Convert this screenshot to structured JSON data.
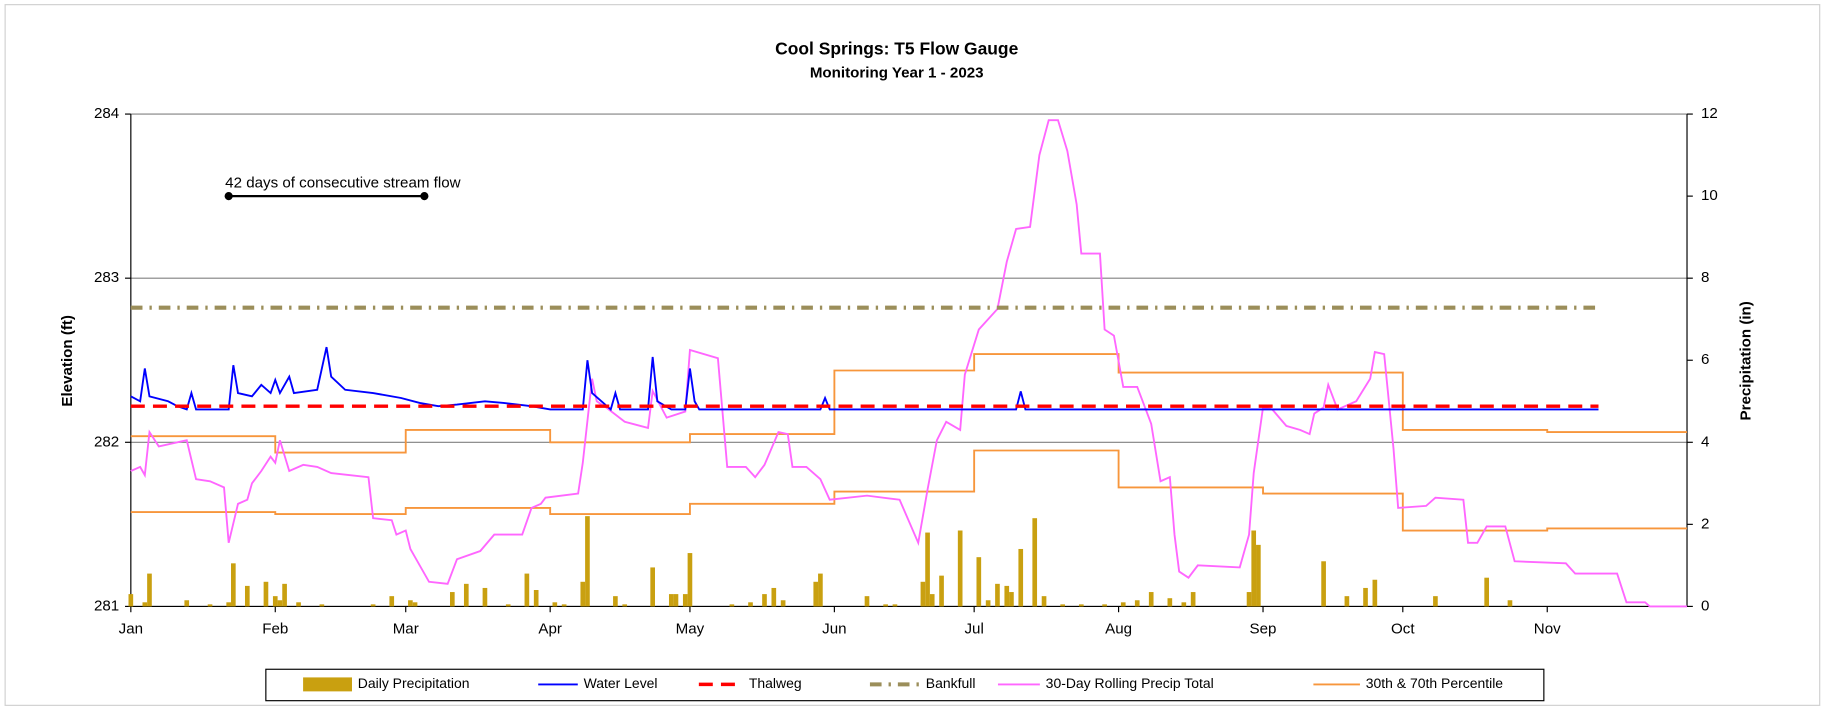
{
  "chart_data": {
    "type": "line",
    "title": "Cool Springs: T5 Flow Gauge",
    "subtitle": "Monitoring Year 1 - 2023",
    "y_label": "Elevation (ft)",
    "y2_label": "Precipitation (in)",
    "xlim": [
      0,
      334
    ],
    "xticks": [
      {
        "value": 0,
        "label": "Jan"
      },
      {
        "value": 31,
        "label": "Feb"
      },
      {
        "value": 59,
        "label": "Mar"
      },
      {
        "value": 90,
        "label": "Apr"
      },
      {
        "value": 120,
        "label": "May"
      },
      {
        "value": 151,
        "label": "Jun"
      },
      {
        "value": 181,
        "label": "Jul"
      },
      {
        "value": 212,
        "label": "Aug"
      },
      {
        "value": 243,
        "label": "Sep"
      },
      {
        "value": 273,
        "label": "Oct"
      },
      {
        "value": 304,
        "label": "Nov"
      }
    ],
    "ylim": [
      281,
      284
    ],
    "yticks": [
      281,
      282,
      283,
      284
    ],
    "y2lim": [
      0,
      12
    ],
    "y2ticks": [
      0,
      2,
      4,
      6,
      8,
      10,
      12
    ],
    "grid": true,
    "legend": "bottom",
    "annotation": {
      "text": "42 days of consecutive stream flow",
      "x": [
        21,
        63
      ],
      "y": 283.5
    },
    "series": [
      {
        "name": "Daily Precipitation",
        "style": "bar",
        "axis": "y2",
        "color": "#c9a010",
        "x": [
          0,
          3,
          4,
          12,
          17,
          21,
          22,
          25,
          29,
          31,
          32,
          33,
          36,
          41,
          52,
          56,
          60,
          61,
          69,
          72,
          76,
          81,
          85,
          87,
          91,
          93,
          97,
          98,
          104,
          106,
          112,
          116,
          117,
          119,
          120,
          129,
          133,
          136,
          138,
          140,
          147,
          148,
          158,
          162,
          164,
          170,
          171,
          172,
          174,
          178,
          182,
          184,
          186,
          188,
          189,
          191,
          194,
          196,
          200,
          204,
          209,
          213,
          216,
          219,
          223,
          226,
          228,
          240,
          241,
          242,
          256,
          261,
          265,
          267,
          280,
          291,
          296
        ],
        "values": [
          0.3,
          0.1,
          0.8,
          0.15,
          0.05,
          0.1,
          1.05,
          0.5,
          0.6,
          0.25,
          0.15,
          0.55,
          0.1,
          0.05,
          0.05,
          0.25,
          0.15,
          0.1,
          0.35,
          0.55,
          0.45,
          0.05,
          0.8,
          0.4,
          0.1,
          0.05,
          0.6,
          2.2,
          0.25,
          0.05,
          0.95,
          0.3,
          0.3,
          0.3,
          1.3,
          0.05,
          0.1,
          0.3,
          0.45,
          0.15,
          0.6,
          0.8,
          0.25,
          0.05,
          0.05,
          0.6,
          1.8,
          0.3,
          0.75,
          1.85,
          1.2,
          0.15,
          0.55,
          0.5,
          0.35,
          1.4,
          2.15,
          0.25,
          0.05,
          0.05,
          0.05,
          0.1,
          0.15,
          0.35,
          0.2,
          0.1,
          0.35,
          0.35,
          1.85,
          1.5,
          1.1,
          0.25,
          0.45,
          0.65,
          0.25,
          0.7,
          0.15
        ]
      },
      {
        "name": "Water Level",
        "style": "line",
        "color": "#0000ff",
        "x": [
          0,
          2,
          3,
          4,
          8,
          10,
          12,
          13,
          14,
          21,
          22,
          23,
          26,
          28,
          30,
          31,
          32,
          34,
          35,
          40,
          42,
          43,
          46,
          52,
          58,
          62,
          66,
          70,
          76,
          80,
          86,
          90,
          97,
          98,
          99,
          103,
          104,
          105,
          111,
          112,
          113,
          116,
          119,
          120,
          121,
          122,
          148,
          149,
          150,
          190,
          191,
          192,
          315
        ],
        "values": [
          282.28,
          282.25,
          282.45,
          282.28,
          282.25,
          282.22,
          282.2,
          282.3,
          282.2,
          282.2,
          282.47,
          282.3,
          282.28,
          282.35,
          282.3,
          282.38,
          282.3,
          282.4,
          282.3,
          282.32,
          282.58,
          282.4,
          282.32,
          282.3,
          282.27,
          282.24,
          282.22,
          282.23,
          282.25,
          282.24,
          282.22,
          282.2,
          282.2,
          282.5,
          282.3,
          282.2,
          282.3,
          282.2,
          282.2,
          282.52,
          282.25,
          282.2,
          282.2,
          282.45,
          282.25,
          282.2,
          282.2,
          282.27,
          282.2,
          282.2,
          282.31,
          282.2,
          282.2
        ]
      },
      {
        "name": "Thalweg",
        "style": "dash",
        "color": "#ff0000",
        "x": [
          0,
          315
        ],
        "values": [
          282.22,
          282.22
        ]
      },
      {
        "name": "Bankfull",
        "style": "dashdot",
        "color": "#9b8e5a",
        "x": [
          0,
          315
        ],
        "values": [
          282.82,
          282.82
        ]
      },
      {
        "name": "30-Day Rolling Precip Total",
        "style": "line",
        "axis": "y2",
        "color": "#ff66ff",
        "x": [
          0,
          2,
          3,
          4,
          6,
          12,
          14,
          17,
          20,
          21,
          23,
          25,
          26,
          28,
          30,
          31,
          32,
          34,
          37,
          40,
          43,
          51,
          52,
          56,
          57,
          59,
          60,
          61,
          64,
          68,
          70,
          75,
          78,
          84,
          86,
          88,
          89,
          96,
          97,
          99,
          100,
          102,
          106,
          111,
          112,
          115,
          119,
          120,
          126,
          128,
          132,
          134,
          136,
          139,
          141,
          142,
          145,
          148,
          150,
          158,
          165,
          169,
          171,
          173,
          175,
          178,
          179,
          182,
          186,
          188,
          190,
          193,
          195,
          197,
          199,
          201,
          203,
          204,
          208,
          209,
          211,
          213,
          216,
          219,
          221,
          223,
          224,
          225,
          227,
          229,
          238,
          240,
          241,
          243,
          245,
          248,
          251,
          253,
          254,
          256,
          257,
          259,
          263,
          266,
          267,
          269,
          271,
          272,
          278,
          280,
          286,
          287,
          289,
          291,
          295,
          297,
          308,
          310,
          319,
          321,
          325,
          326,
          334
        ],
        "values": [
          3.3,
          3.4,
          3.2,
          4.25,
          3.9,
          4.05,
          3.1,
          3.05,
          2.9,
          1.55,
          2.5,
          2.6,
          3.0,
          3.3,
          3.65,
          3.5,
          4.05,
          3.3,
          3.45,
          3.4,
          3.25,
          3.15,
          2.15,
          2.1,
          1.75,
          1.85,
          1.4,
          1.2,
          0.6,
          0.55,
          1.15,
          1.35,
          1.75,
          1.75,
          2.4,
          2.5,
          2.65,
          2.75,
          3.5,
          5.55,
          5.0,
          4.85,
          4.5,
          4.35,
          5.25,
          4.6,
          4.75,
          6.25,
          6.05,
          3.4,
          3.4,
          3.15,
          3.45,
          4.25,
          4.2,
          3.4,
          3.4,
          3.1,
          2.6,
          2.7,
          2.6,
          1.55,
          2.85,
          4.05,
          4.5,
          4.3,
          5.65,
          6.75,
          7.25,
          8.4,
          9.2,
          9.25,
          11.0,
          11.85,
          11.85,
          11.1,
          9.8,
          8.6,
          8.6,
          6.75,
          6.6,
          5.35,
          5.35,
          4.45,
          3.05,
          3.15,
          1.75,
          0.85,
          0.7,
          1.0,
          0.95,
          1.75,
          3.25,
          4.85,
          4.8,
          4.4,
          4.3,
          4.2,
          4.7,
          4.85,
          5.4,
          4.8,
          5.0,
          5.55,
          6.2,
          6.15,
          3.85,
          2.4,
          2.45,
          2.65,
          2.6,
          1.55,
          1.55,
          1.95,
          1.95,
          1.1,
          1.05,
          0.8,
          0.8,
          0.1,
          0.1,
          0,
          0
        ]
      },
      {
        "name": "30th & 70th Percentile",
        "style": "step",
        "axis": "y2",
        "color": "#f7963c",
        "x": [
          0,
          31,
          59,
          90,
          120,
          151,
          181,
          212,
          243,
          273,
          304,
          334
        ],
        "values": [
          4.15,
          3.75,
          4.3,
          4.0,
          4.2,
          5.75,
          6.15,
          5.7,
          5.7,
          4.3,
          4.25,
          4.25
        ],
        "values2": [
          2.3,
          2.25,
          2.4,
          2.25,
          2.5,
          2.8,
          3.8,
          2.9,
          2.75,
          1.85,
          1.9,
          1.9
        ]
      }
    ]
  }
}
